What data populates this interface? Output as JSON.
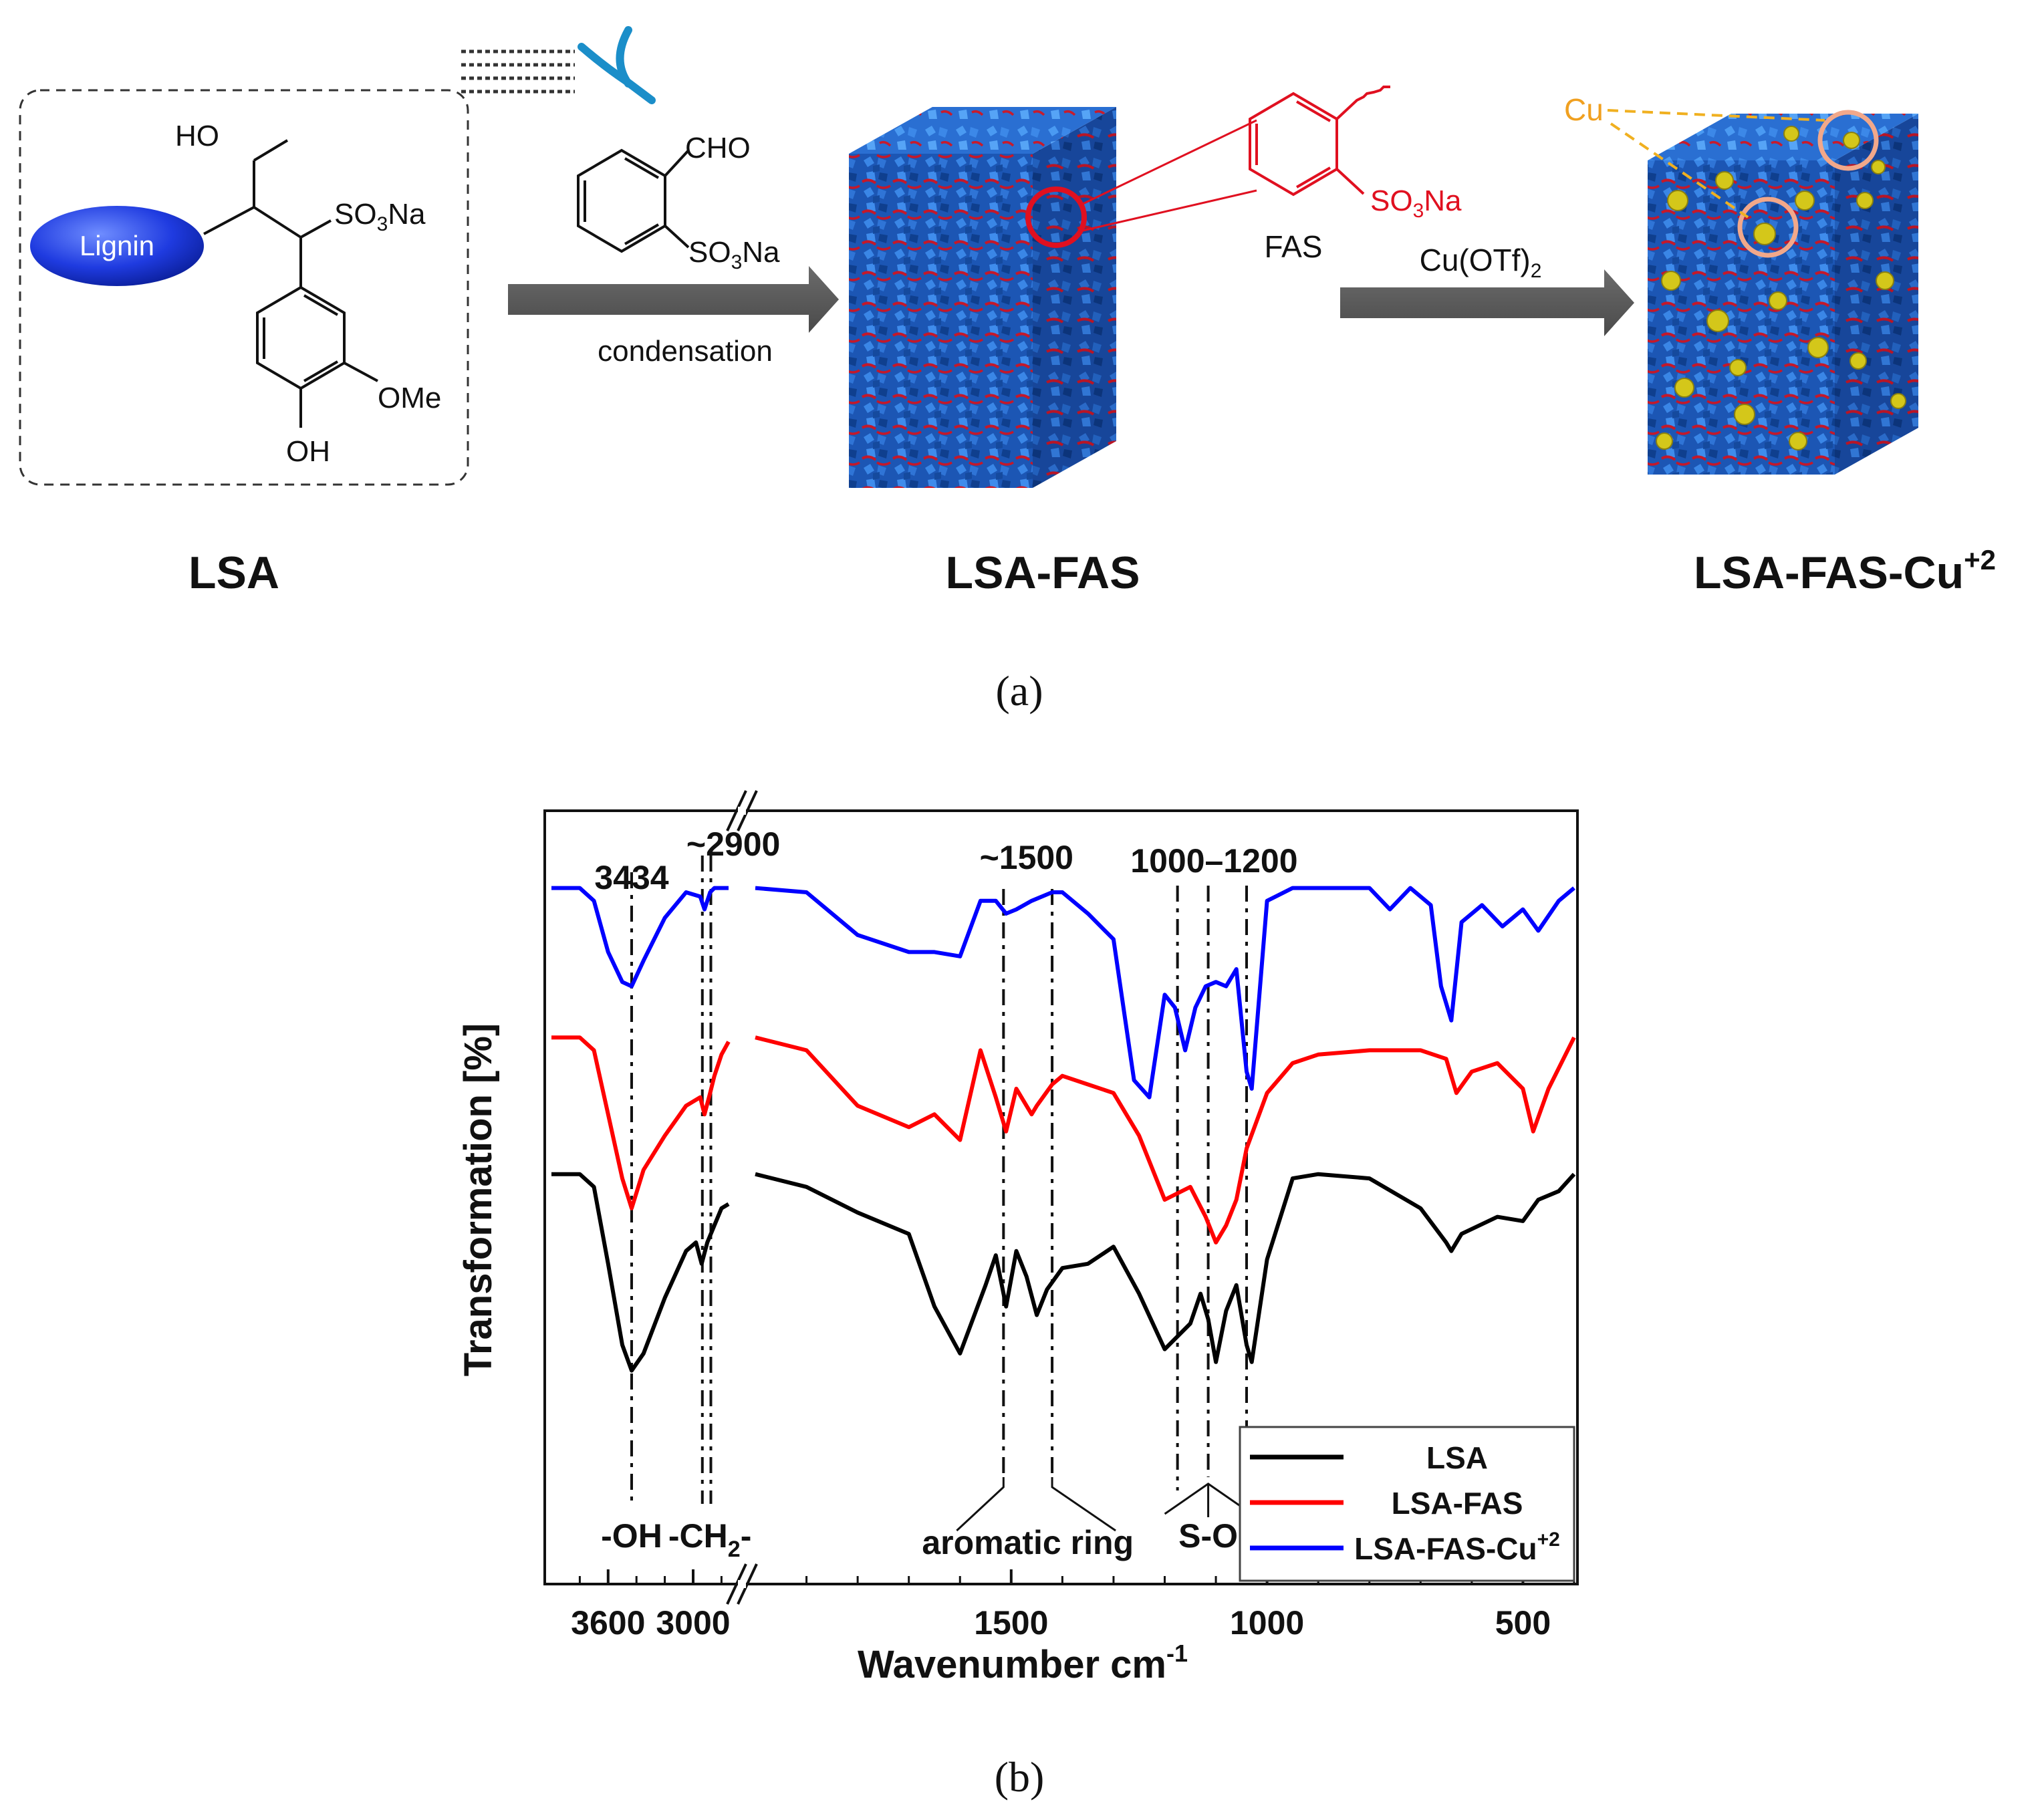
{
  "scheme": {
    "lignin_label": "Lignin",
    "lsa_structure": {
      "ho": "HO",
      "so3na": "SO3Na",
      "ome": "OMe",
      "oh": "OH"
    },
    "reagent": {
      "cho": "CHO",
      "so3na": "SO3Na"
    },
    "step1_label": "condensation",
    "fas_inset": {
      "so3na": "SO3Na",
      "name": "FAS"
    },
    "step2_reagent": "Cu(OTf)2",
    "cu_label": "Cu",
    "names": {
      "lsa": "LSA",
      "lsa_fas": "LSA-FAS",
      "lsa_fas_cu": "LSA-FAS-Cu+2"
    },
    "caption_a": "(a)"
  },
  "caption_b": "(b)",
  "colors": {
    "LSA": "#000000",
    "LSA-FAS": "#ff0000",
    "LSA-FAS-Cu+2": "#0000ff",
    "cube_blue": "#1f5fbf",
    "copper_label": "#f0a020"
  },
  "chart_data": {
    "type": "line",
    "xlabel": "Wavenumber cm",
    "xlabel_superscript": "-1",
    "ylabel": "Transformation [%]",
    "x_reversed": true,
    "x_broken_axis": true,
    "x_ticks": [
      "3600",
      "3000",
      "1500",
      "1000",
      "500"
    ],
    "legend_position": "bottom-right",
    "legend": [
      "LSA",
      "LSA-FAS",
      "LSA-FAS-Cu+2"
    ],
    "annotations": {
      "peaks": [
        "3434",
        "~2900",
        "~1500",
        "1000–1200"
      ],
      "groups": [
        "-OH",
        "-CH2-",
        "aromatic ring",
        "S-O"
      ]
    },
    "series": [
      {
        "name": "LSA",
        "points": [
          [
            4000,
            96
          ],
          [
            3800,
            96
          ],
          [
            3700,
            93
          ],
          [
            3600,
            75
          ],
          [
            3500,
            56
          ],
          [
            3434,
            50
          ],
          [
            3350,
            54
          ],
          [
            3200,
            67
          ],
          [
            3050,
            78
          ],
          [
            2980,
            80
          ],
          [
            2940,
            75
          ],
          [
            2900,
            80
          ],
          [
            2850,
            84
          ],
          [
            2800,
            88
          ],
          [
            2750,
            89
          ],
          [
            2000,
            96
          ],
          [
            1900,
            93
          ],
          [
            1800,
            87
          ],
          [
            1700,
            82
          ],
          [
            1650,
            65
          ],
          [
            1600,
            54
          ],
          [
            1550,
            70
          ],
          [
            1530,
            77
          ],
          [
            1510,
            65
          ],
          [
            1490,
            78
          ],
          [
            1470,
            72
          ],
          [
            1450,
            63
          ],
          [
            1430,
            69
          ],
          [
            1400,
            74
          ],
          [
            1350,
            75
          ],
          [
            1300,
            79
          ],
          [
            1250,
            68
          ],
          [
            1200,
            55
          ],
          [
            1150,
            61
          ],
          [
            1130,
            68
          ],
          [
            1115,
            62
          ],
          [
            1100,
            52
          ],
          [
            1080,
            64
          ],
          [
            1060,
            70
          ],
          [
            1040,
            56
          ],
          [
            1030,
            52
          ],
          [
            1000,
            76
          ],
          [
            950,
            95
          ],
          [
            900,
            96
          ],
          [
            800,
            95
          ],
          [
            700,
            88
          ],
          [
            650,
            80
          ],
          [
            640,
            78
          ],
          [
            620,
            82
          ],
          [
            550,
            86
          ],
          [
            500,
            85
          ],
          [
            470,
            90
          ],
          [
            430,
            92
          ],
          [
            400,
            96
          ]
        ]
      },
      {
        "name": "LSA-FAS",
        "points": [
          [
            4000,
            128
          ],
          [
            3800,
            128
          ],
          [
            3700,
            125
          ],
          [
            3600,
            110
          ],
          [
            3500,
            95
          ],
          [
            3434,
            88
          ],
          [
            3350,
            97
          ],
          [
            3200,
            105
          ],
          [
            3050,
            112
          ],
          [
            2950,
            114
          ],
          [
            2920,
            110
          ],
          [
            2880,
            115
          ],
          [
            2850,
            119
          ],
          [
            2800,
            124
          ],
          [
            2750,
            127
          ],
          [
            2000,
            128
          ],
          [
            1900,
            125
          ],
          [
            1800,
            112
          ],
          [
            1700,
            107
          ],
          [
            1650,
            110
          ],
          [
            1600,
            104
          ],
          [
            1560,
            125
          ],
          [
            1530,
            114
          ],
          [
            1510,
            106
          ],
          [
            1490,
            116
          ],
          [
            1460,
            110
          ],
          [
            1450,
            112
          ],
          [
            1420,
            117
          ],
          [
            1400,
            119
          ],
          [
            1350,
            117
          ],
          [
            1300,
            115
          ],
          [
            1250,
            105
          ],
          [
            1200,
            90
          ],
          [
            1150,
            93
          ],
          [
            1120,
            86
          ],
          [
            1100,
            80
          ],
          [
            1080,
            84
          ],
          [
            1060,
            90
          ],
          [
            1040,
            102
          ],
          [
            1000,
            115
          ],
          [
            950,
            122
          ],
          [
            900,
            124
          ],
          [
            800,
            125
          ],
          [
            700,
            125
          ],
          [
            650,
            123
          ],
          [
            630,
            115
          ],
          [
            600,
            120
          ],
          [
            550,
            122
          ],
          [
            500,
            116
          ],
          [
            480,
            106
          ],
          [
            450,
            116
          ],
          [
            400,
            128
          ]
        ]
      },
      {
        "name": "LSA-FAS-Cu+2",
        "points": [
          [
            4000,
            163
          ],
          [
            3800,
            163
          ],
          [
            3700,
            160
          ],
          [
            3600,
            148
          ],
          [
            3500,
            141
          ],
          [
            3434,
            140
          ],
          [
            3350,
            146
          ],
          [
            3200,
            156
          ],
          [
            3050,
            162
          ],
          [
            2950,
            161
          ],
          [
            2920,
            158
          ],
          [
            2880,
            162
          ],
          [
            2850,
            163
          ],
          [
            2800,
            163
          ],
          [
            2750,
            163
          ],
          [
            2000,
            163
          ],
          [
            1900,
            162
          ],
          [
            1800,
            152
          ],
          [
            1700,
            148
          ],
          [
            1650,
            148
          ],
          [
            1600,
            147
          ],
          [
            1560,
            160
          ],
          [
            1530,
            160
          ],
          [
            1510,
            157
          ],
          [
            1490,
            158
          ],
          [
            1460,
            160
          ],
          [
            1420,
            162
          ],
          [
            1400,
            162
          ],
          [
            1350,
            157
          ],
          [
            1300,
            151
          ],
          [
            1260,
            118
          ],
          [
            1230,
            114
          ],
          [
            1200,
            138
          ],
          [
            1180,
            135
          ],
          [
            1160,
            125
          ],
          [
            1140,
            135
          ],
          [
            1120,
            140
          ],
          [
            1100,
            141
          ],
          [
            1080,
            140
          ],
          [
            1060,
            144
          ],
          [
            1040,
            120
          ],
          [
            1030,
            116
          ],
          [
            1000,
            160
          ],
          [
            950,
            163
          ],
          [
            800,
            163
          ],
          [
            760,
            158
          ],
          [
            720,
            163
          ],
          [
            680,
            159
          ],
          [
            660,
            140
          ],
          [
            640,
            132
          ],
          [
            620,
            155
          ],
          [
            580,
            159
          ],
          [
            540,
            154
          ],
          [
            500,
            158
          ],
          [
            470,
            153
          ],
          [
            430,
            160
          ],
          [
            400,
            163
          ]
        ]
      }
    ]
  }
}
